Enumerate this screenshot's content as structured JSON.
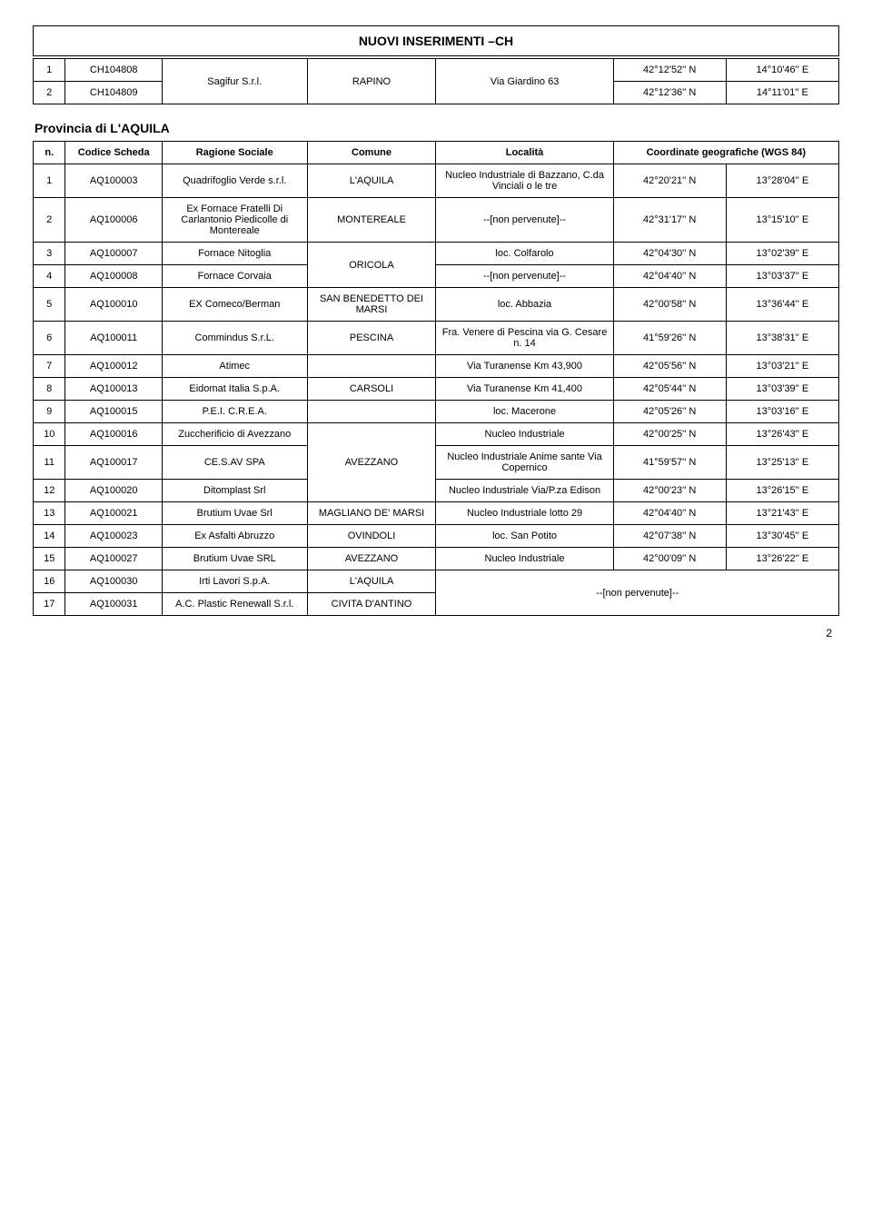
{
  "title": "NUOVI INSERIMENTI –CH",
  "pageNum": "2",
  "t1": {
    "r1": {
      "n": "1",
      "c": "CH104808",
      "lat": "42°12'52'' N",
      "lon": "14°10'46'' E"
    },
    "r2": {
      "n": "2",
      "c": "CH104809",
      "lat": "42°12'36'' N",
      "lon": "14°11'01'' E"
    },
    "rag": "Sagifur S.r.l.",
    "com": "RAPINO",
    "loc": "Via Giardino 63"
  },
  "sec2": "Provincia di L'AQUILA",
  "t2h": {
    "n": "n.",
    "cod": "Codice Scheda",
    "rag": "Ragione Sociale",
    "com": "Comune",
    "loc": "Località",
    "coord": "Coordinate geografiche (WGS 84)"
  },
  "t2": [
    {
      "n": "1",
      "c": "AQ100003",
      "r": "Quadrifoglio Verde s.r.l.",
      "com": "L'AQUILA",
      "loc": "Nucleo Industriale di Bazzano, C.da Vinciali o le tre",
      "lat": "42°20'21'' N",
      "lon": "13°28'04'' E"
    },
    {
      "n": "2",
      "c": "AQ100006",
      "r": "Ex Fornace Fratelli Di Carlantonio Piedicolle di Montereale",
      "com": "MONTEREALE",
      "loc": "--[non pervenute]--",
      "lat": "42°31'17'' N",
      "lon": "13°15'10'' E"
    },
    {
      "n": "3",
      "c": "AQ100007",
      "r": "Fornace Nitoglia",
      "com": "ORICOLA",
      "loc": "loc. Colfarolo",
      "lat": "42°04'30'' N",
      "lon": "13°02'39'' E"
    },
    {
      "n": "4",
      "c": "AQ100008",
      "r": "Fornace Corvaia",
      "loc": "--[non pervenute]--",
      "lat": "42°04'40'' N",
      "lon": "13°03'37'' E"
    },
    {
      "n": "5",
      "c": "AQ100010",
      "r": "EX Comeco/Berman",
      "com": "SAN BENEDETTO DEI MARSI",
      "loc": "loc. Abbazia",
      "lat": "42°00'58'' N",
      "lon": "13°36'44'' E"
    },
    {
      "n": "6",
      "c": "AQ100011",
      "r": "Commindus S.r.L.",
      "com": "PESCINA",
      "loc": "Fra. Venere di Pescina via G. Cesare n. 14",
      "lat": "41°59'26'' N",
      "lon": "13°38'31'' E"
    },
    {
      "n": "7",
      "c": "AQ100012",
      "r": "Atimec",
      "com": "",
      "loc": "Via Turanense Km 43,900",
      "lat": "42°05'56'' N",
      "lon": "13°03'21'' E"
    },
    {
      "n": "8",
      "c": "AQ100013",
      "r": "Eidomat Italia S.p.A.",
      "com": "CARSOLI",
      "loc": "Via Turanense Km 41,400",
      "lat": "42°05'44'' N",
      "lon": "13°03'39'' E"
    },
    {
      "n": "9",
      "c": "AQ100015",
      "r": "P.E.I. C.R.E.A.",
      "com": "",
      "loc": "loc. Macerone",
      "lat": "42°05'26'' N",
      "lon": "13°03'16'' E"
    },
    {
      "n": "10",
      "c": "AQ100016",
      "r": "Zuccherificio di Avezzano",
      "com": "AVEZZANO",
      "loc": "Nucleo Industriale",
      "lat": "42°00'25'' N",
      "lon": "13°26'43'' E"
    },
    {
      "n": "11",
      "c": "AQ100017",
      "r": "CE.S.AV SPA",
      "loc": "Nucleo Industriale Anime sante Via Copernico",
      "lat": "41°59'57'' N",
      "lon": "13°25'13'' E"
    },
    {
      "n": "12",
      "c": "AQ100020",
      "r": "Ditomplast Srl",
      "loc": "Nucleo Industriale Via/P.za Edison",
      "lat": "42°00'23'' N",
      "lon": "13°26'15'' E"
    },
    {
      "n": "13",
      "c": "AQ100021",
      "r": "Brutium Uvae Srl",
      "com": "MAGLIANO DE' MARSI",
      "loc": "Nucleo Industriale lotto 29",
      "lat": "42°04'40'' N",
      "lon": "13°21'43'' E"
    },
    {
      "n": "14",
      "c": "AQ100023",
      "r": "Ex Asfalti Abruzzo",
      "com": "OVINDOLI",
      "loc": "loc. San Potito",
      "lat": "42°07'38'' N",
      "lon": "13°30'45'' E"
    },
    {
      "n": "15",
      "c": "AQ100027",
      "r": "Brutium Uvae SRL",
      "com": "AVEZZANO",
      "loc": "Nucleo Industriale",
      "lat": "42°00'09'' N",
      "lon": "13°26'22'' E"
    },
    {
      "n": "16",
      "c": "AQ100030",
      "r": "Irti Lavori S.p.A.",
      "com": "L'AQUILA",
      "loc": "--[non pervenute]--"
    },
    {
      "n": "17",
      "c": "AQ100031",
      "r": "A.C. Plastic Renewall S.r.l.",
      "com": "CIVITA D'ANTINO"
    }
  ]
}
